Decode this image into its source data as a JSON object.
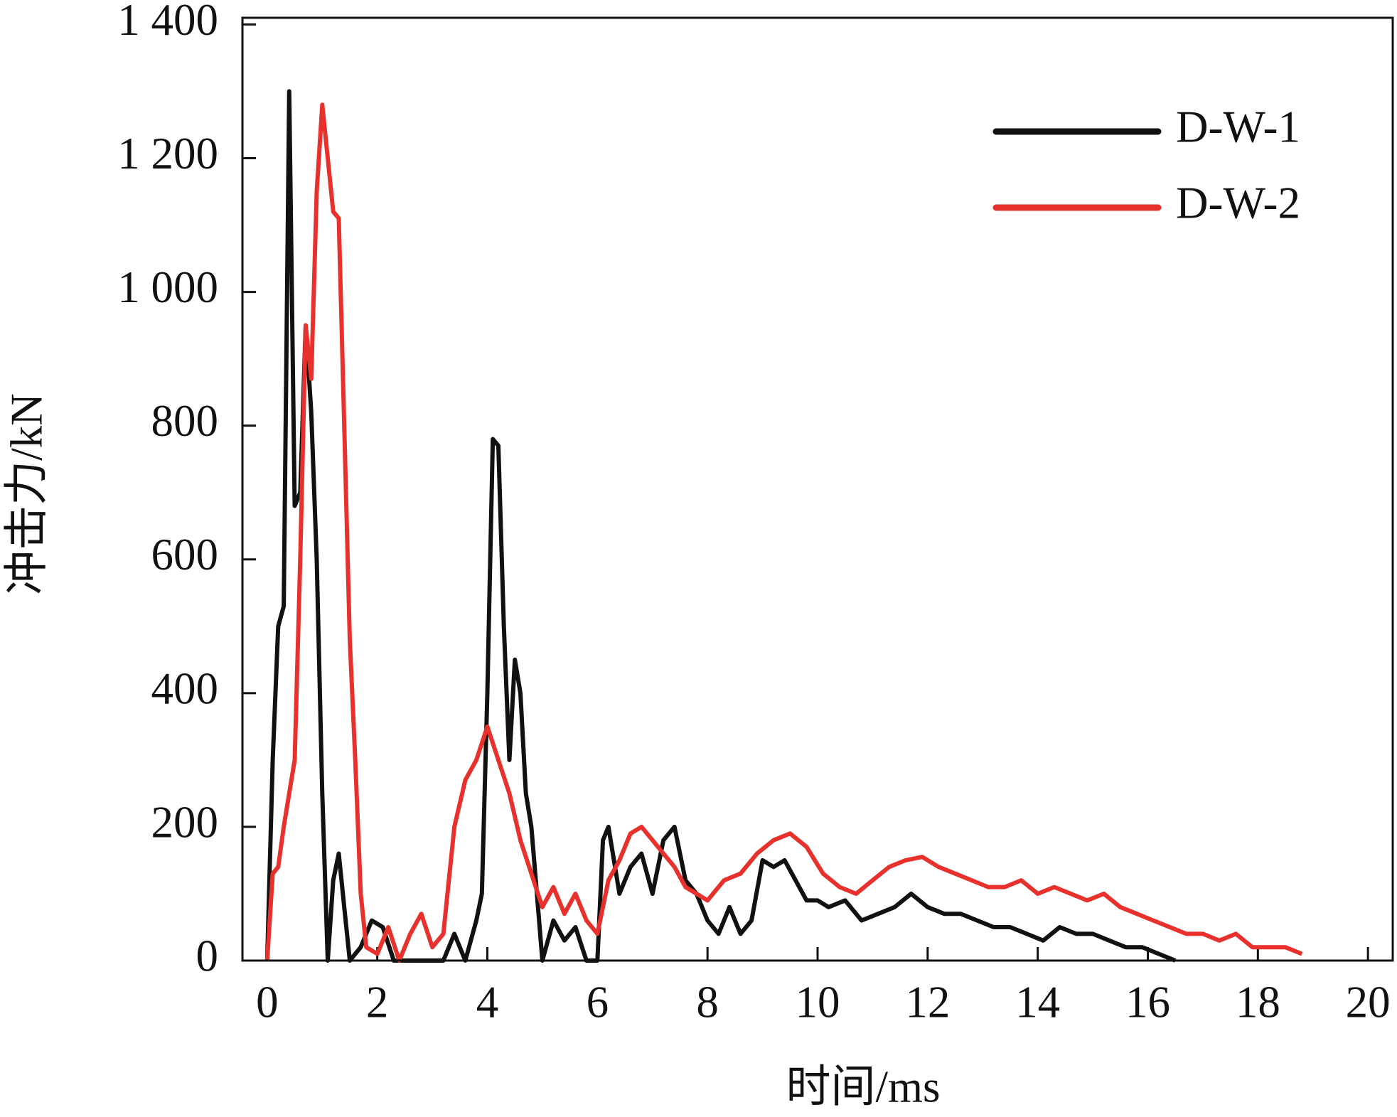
{
  "chart_data": {
    "type": "line",
    "xlabel": "时间/ms",
    "ylabel": "冲击力/kN",
    "xlim": [
      -0.45,
      20.45
    ],
    "ylim": [
      0,
      1410
    ],
    "xticks": [
      0,
      2,
      4,
      6,
      8,
      10,
      12,
      14,
      16,
      18,
      20
    ],
    "yticks": [
      0,
      200,
      400,
      600,
      800,
      {
        "value": 1000,
        "label": "1 000"
      },
      {
        "value": 1200,
        "label": "1 200"
      },
      {
        "value": 1400,
        "label": "1 400"
      }
    ],
    "legend": "upper right",
    "series": [
      {
        "name": "D-W-1",
        "color": "#111111",
        "x": [
          0,
          0.1,
          0.2,
          0.3,
          0.4,
          0.5,
          0.6,
          0.7,
          0.8,
          0.9,
          1.0,
          1.1,
          1.2,
          1.3,
          1.4,
          1.5,
          1.7,
          1.9,
          2.1,
          2.3,
          2.7,
          3.2,
          3.4,
          3.6,
          3.8,
          3.9,
          4.0,
          4.1,
          4.2,
          4.3,
          4.4,
          4.5,
          4.6,
          4.7,
          4.8,
          4.9,
          5.0,
          5.2,
          5.4,
          5.6,
          5.8,
          6.0,
          6.1,
          6.2,
          6.4,
          6.6,
          6.8,
          7.0,
          7.2,
          7.4,
          7.6,
          7.8,
          8.0,
          8.2,
          8.4,
          8.6,
          8.8,
          9.0,
          9.2,
          9.4,
          9.6,
          9.8,
          10.0,
          10.2,
          10.5,
          10.8,
          11.1,
          11.4,
          11.7,
          12.0,
          12.3,
          12.6,
          12.9,
          13.2,
          13.5,
          13.8,
          14.1,
          14.4,
          14.7,
          15.0,
          15.3,
          15.6,
          15.9,
          16.2,
          16.5
        ],
        "values": [
          0,
          300,
          500,
          530,
          1300,
          680,
          700,
          950,
          820,
          600,
          250,
          0,
          120,
          160,
          80,
          0,
          20,
          60,
          50,
          0,
          0,
          0,
          40,
          0,
          60,
          100,
          400,
          780,
          770,
          500,
          300,
          450,
          400,
          250,
          200,
          100,
          0,
          60,
          30,
          50,
          0,
          0,
          180,
          200,
          100,
          140,
          160,
          100,
          180,
          200,
          120,
          100,
          60,
          40,
          80,
          40,
          60,
          150,
          140,
          150,
          120,
          90,
          90,
          80,
          90,
          60,
          70,
          80,
          100,
          80,
          70,
          70,
          60,
          50,
          50,
          40,
          30,
          50,
          40,
          40,
          30,
          20,
          20,
          10,
          0
        ]
      },
      {
        "name": "D-W-2",
        "color": "#e8312c",
        "x": [
          0,
          0.1,
          0.2,
          0.3,
          0.4,
          0.5,
          0.6,
          0.7,
          0.8,
          0.9,
          1.0,
          1.1,
          1.2,
          1.3,
          1.4,
          1.5,
          1.6,
          1.7,
          1.8,
          2.0,
          2.2,
          2.4,
          2.6,
          2.8,
          3.0,
          3.2,
          3.4,
          3.6,
          3.8,
          4.0,
          4.2,
          4.4,
          4.6,
          4.8,
          5.0,
          5.2,
          5.4,
          5.6,
          5.8,
          6.0,
          6.2,
          6.4,
          6.6,
          6.8,
          7.0,
          7.2,
          7.4,
          7.6,
          7.8,
          8.0,
          8.3,
          8.6,
          8.9,
          9.2,
          9.5,
          9.8,
          10.1,
          10.4,
          10.7,
          11.0,
          11.3,
          11.6,
          11.9,
          12.2,
          12.5,
          12.8,
          13.1,
          13.4,
          13.7,
          14.0,
          14.3,
          14.6,
          14.9,
          15.2,
          15.5,
          15.8,
          16.1,
          16.4,
          16.7,
          17.0,
          17.3,
          17.6,
          17.9,
          18.2,
          18.5,
          18.8
        ],
        "values": [
          0,
          130,
          140,
          200,
          250,
          300,
          600,
          950,
          870,
          1150,
          1280,
          1200,
          1120,
          1110,
          800,
          480,
          300,
          100,
          20,
          10,
          50,
          0,
          40,
          70,
          20,
          40,
          200,
          270,
          300,
          350,
          300,
          250,
          180,
          130,
          80,
          110,
          70,
          100,
          60,
          40,
          120,
          150,
          190,
          200,
          180,
          160,
          140,
          110,
          100,
          90,
          120,
          130,
          160,
          180,
          190,
          170,
          130,
          110,
          100,
          120,
          140,
          150,
          155,
          140,
          130,
          120,
          110,
          110,
          120,
          100,
          110,
          100,
          90,
          100,
          80,
          70,
          60,
          50,
          40,
          40,
          30,
          40,
          20,
          20,
          20,
          10
        ]
      }
    ]
  }
}
